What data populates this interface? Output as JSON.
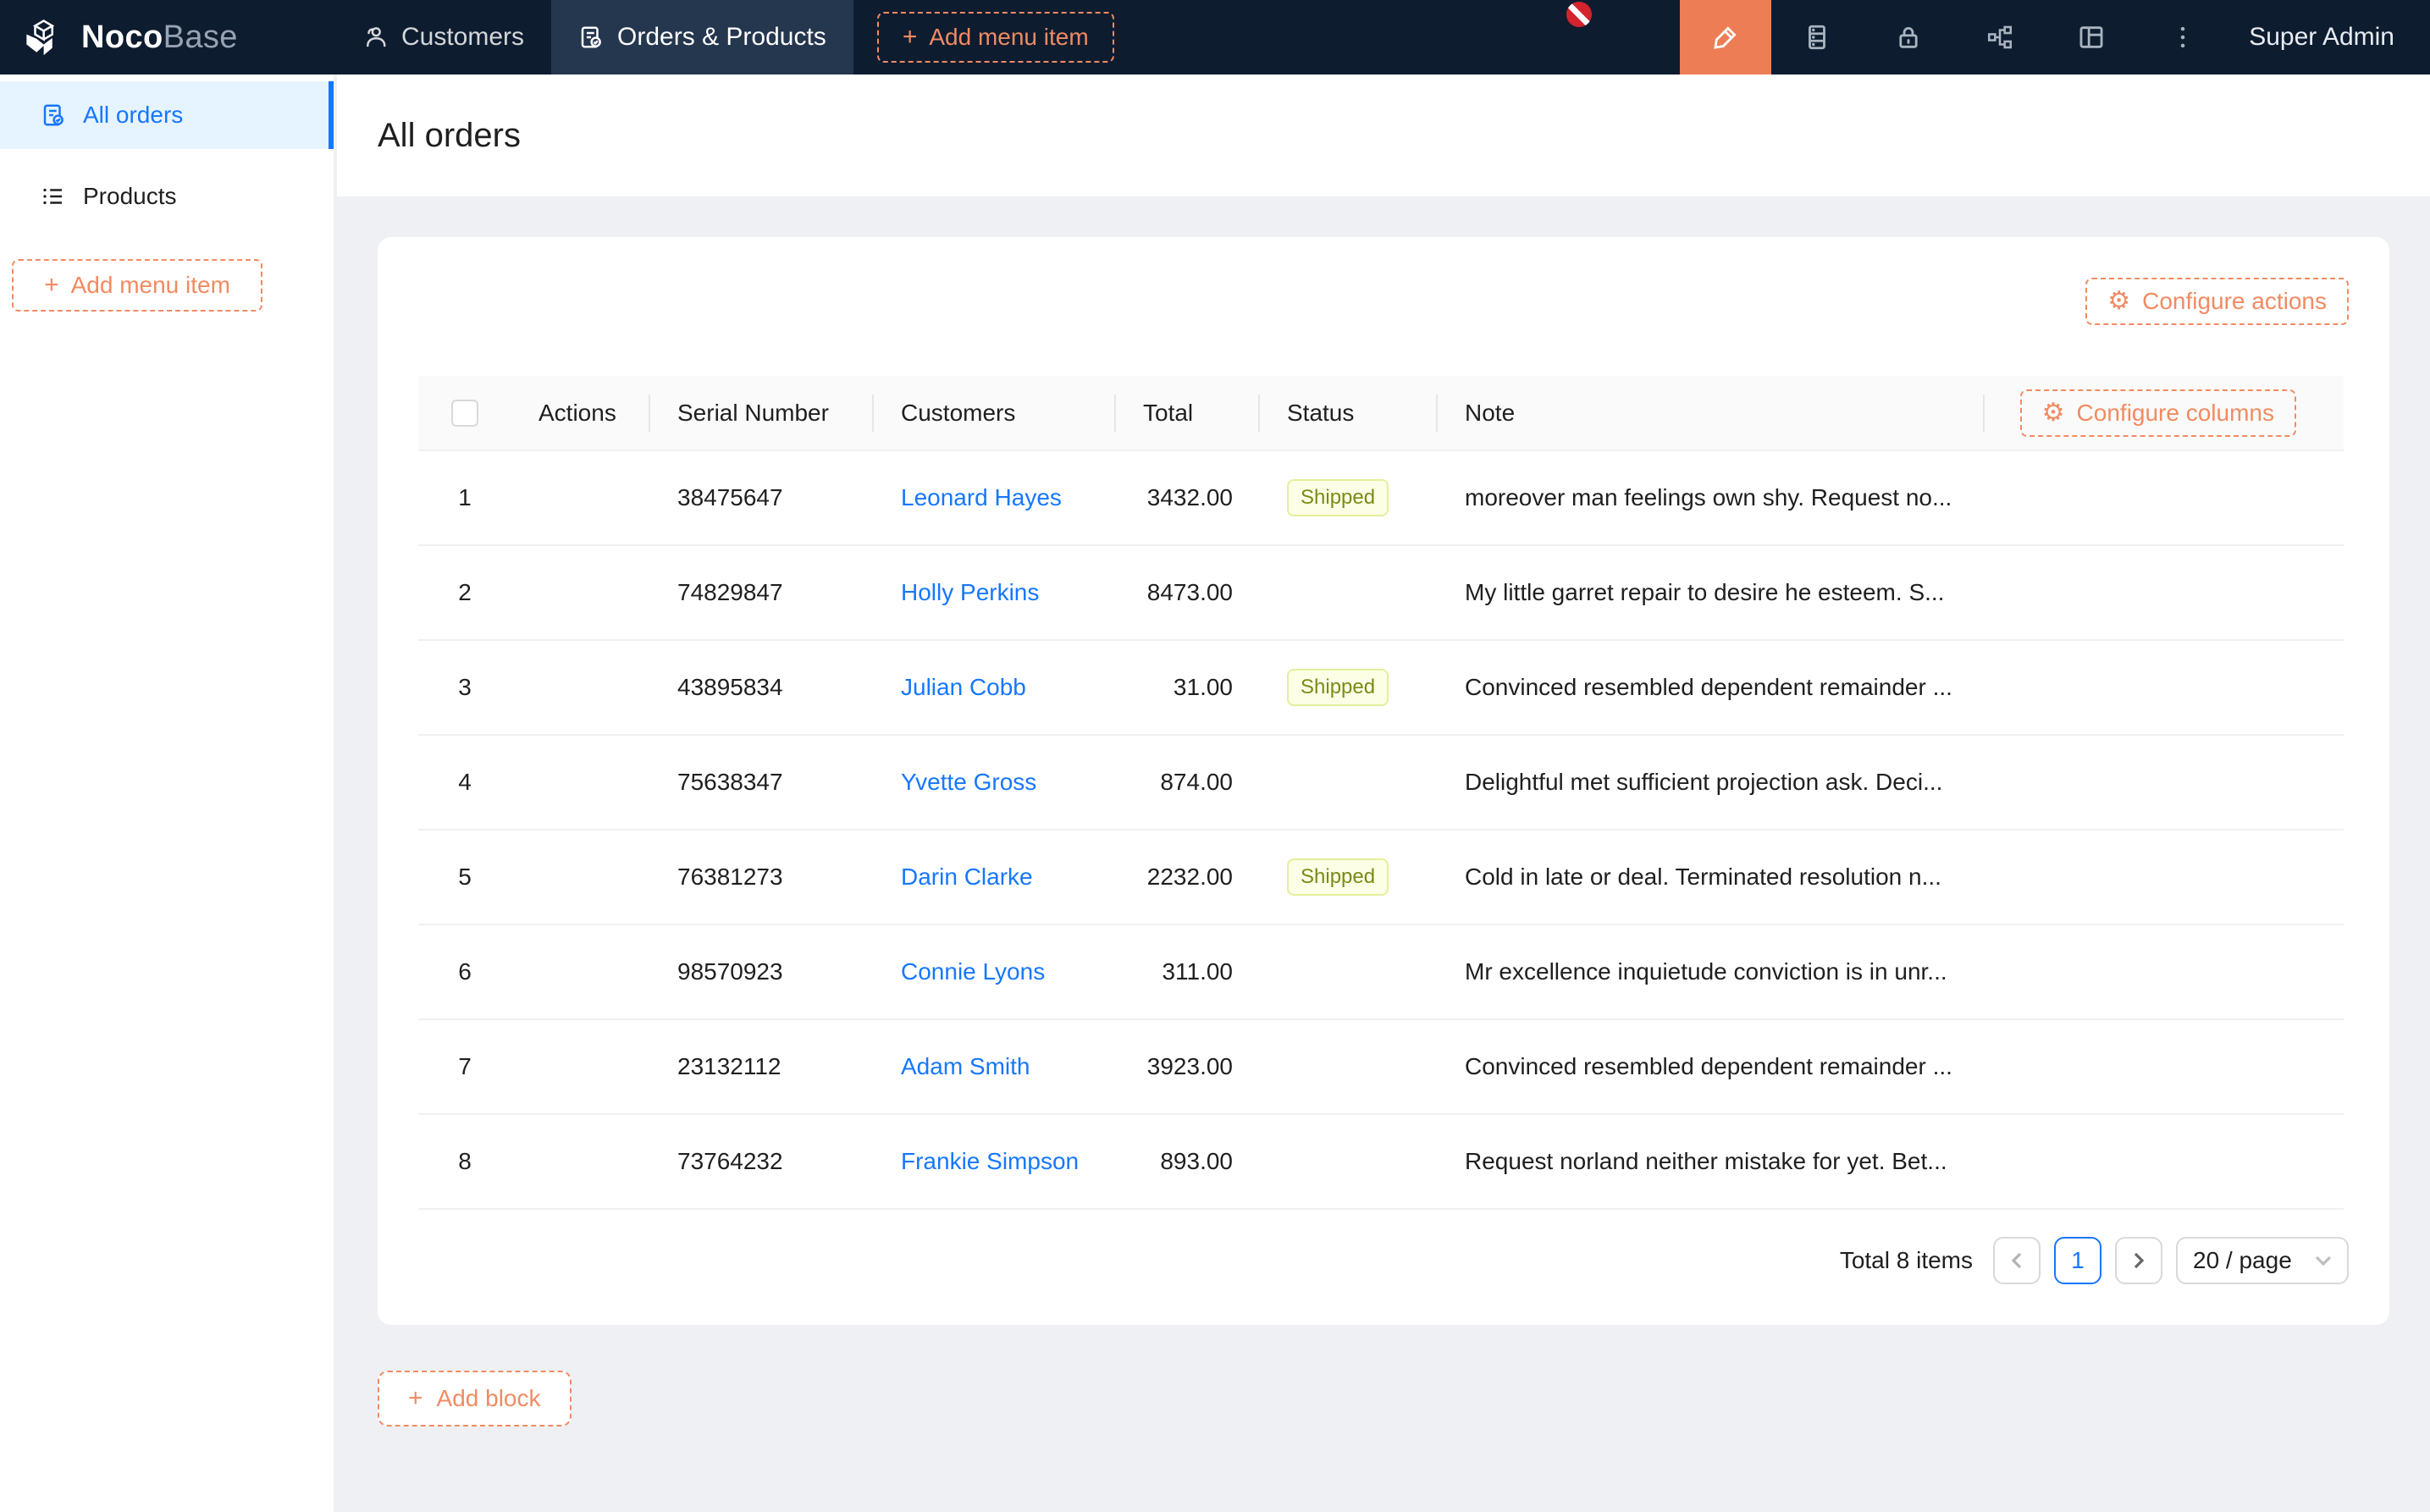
{
  "navbar": {
    "brand_bold": "Noco",
    "brand_light": "Base",
    "tabs": [
      {
        "label": "Customers",
        "icon": "customers-icon",
        "active": false
      },
      {
        "label": "Orders & Products",
        "icon": "orders-icon",
        "active": true
      }
    ],
    "add_menu_item_label": "Add menu item",
    "icon_buttons": [
      "ui-editor-pen-icon",
      "server-icon",
      "lock-icon",
      "workflow-icon",
      "layout-icon",
      "ellipsis-icon"
    ],
    "user_label": "Super Admin"
  },
  "sidebar": {
    "items": [
      {
        "label": "All orders",
        "icon": "order-doc-icon",
        "active": true
      },
      {
        "label": "Products",
        "icon": "list-icon",
        "active": false
      }
    ],
    "add_menu_item_label": "Add menu item"
  },
  "page": {
    "title": "All orders"
  },
  "table_card": {
    "configure_actions_label": "Configure actions",
    "configure_columns_label": "Configure columns",
    "columns": [
      "Actions",
      "Serial Number",
      "Customers",
      "Total",
      "Status",
      "Note"
    ],
    "rows": [
      {
        "index": "1",
        "serial": "38475647",
        "customer": "Leonard Hayes",
        "total": "3432.00",
        "status": "Shipped",
        "note": "moreover man feelings own shy. Request no..."
      },
      {
        "index": "2",
        "serial": "74829847",
        "customer": "Holly Perkins",
        "total": "8473.00",
        "status": "",
        "note": "My little garret repair to desire he esteem. S..."
      },
      {
        "index": "3",
        "serial": "43895834",
        "customer": "Julian Cobb",
        "total": "31.00",
        "status": "Shipped",
        "note": "Convinced resembled dependent remainder ..."
      },
      {
        "index": "4",
        "serial": "75638347",
        "customer": "Yvette Gross",
        "total": "874.00",
        "status": "",
        "note": "Delightful met sufficient projection ask. Deci..."
      },
      {
        "index": "5",
        "serial": "76381273",
        "customer": "Darin Clarke",
        "total": "2232.00",
        "status": "Shipped",
        "note": "Cold in late or deal. Terminated resolution n..."
      },
      {
        "index": "6",
        "serial": "98570923",
        "customer": "Connie Lyons",
        "total": "311.00",
        "status": "",
        "note": "Mr excellence inquietude conviction is in unr..."
      },
      {
        "index": "7",
        "serial": "23132112",
        "customer": "Adam Smith",
        "total": "3923.00",
        "status": "",
        "note": "Convinced resembled dependent remainder ..."
      },
      {
        "index": "8",
        "serial": "73764232",
        "customer": "Frankie Simpson",
        "total": "893.00",
        "status": "",
        "note": "Request norland neither mistake for yet. Bet..."
      }
    ],
    "pagination": {
      "total_text": "Total 8 items",
      "current_page": "1",
      "page_size_label": "20 / page"
    }
  },
  "add_block_label": "Add block",
  "colors": {
    "accent_orange": "#f18b62",
    "active_tool_orange": "#ed7d54",
    "link_blue": "#1677ff",
    "navbar_bg": "#0e1c30",
    "navbar_active_tab": "#25364f",
    "sidebar_selected_bg": "#e6f4ff",
    "tag_bg": "#fcffe6",
    "tag_border": "#e4ef9b",
    "tag_text": "#7b8a14",
    "cursor_no_drop_red": "#d2232e"
  }
}
